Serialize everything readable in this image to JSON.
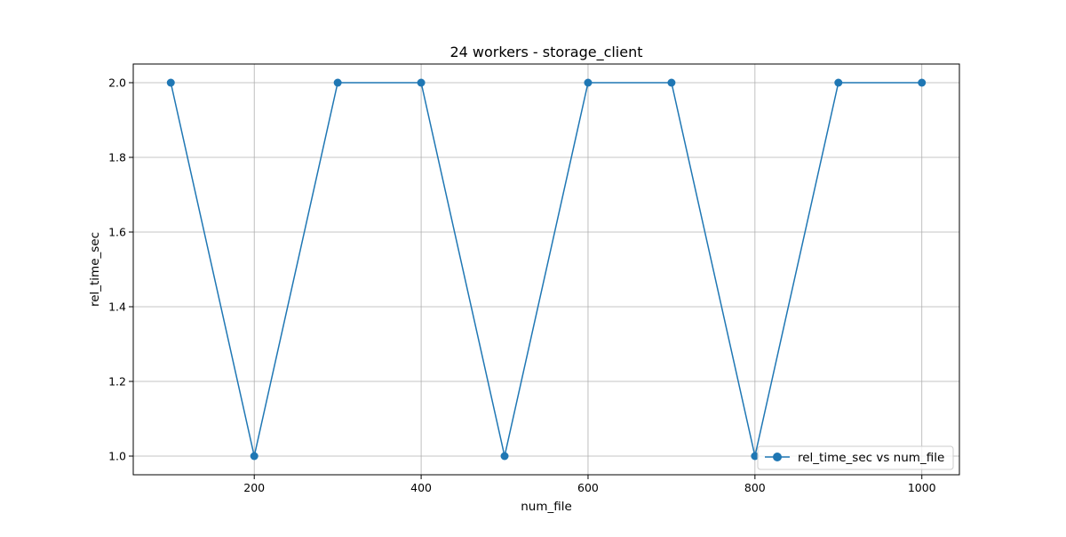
{
  "chart_data": {
    "type": "line",
    "title": "24 workers - storage_client",
    "xlabel": "num_file",
    "ylabel": "rel_time_sec",
    "xlim": [
      55,
      1045
    ],
    "ylim": [
      0.95,
      2.05
    ],
    "xticks": [
      200,
      400,
      600,
      800,
      1000
    ],
    "xtick_labels": [
      "200",
      "400",
      "600",
      "800",
      "1000"
    ],
    "yticks": [
      1.0,
      1.2,
      1.4,
      1.6,
      1.8,
      2.0
    ],
    "ytick_labels": [
      "1.0",
      "1.2",
      "1.4",
      "1.6",
      "1.8",
      "2.0"
    ],
    "grid": true,
    "legend_position": "lower-right",
    "series": [
      {
        "name": "rel_time_sec vs num_file",
        "color": "#1f77b4",
        "marker": "circle",
        "x": [
          100,
          200,
          300,
          400,
          500,
          600,
          700,
          800,
          900,
          1000
        ],
        "y": [
          2,
          1,
          2,
          2,
          1,
          2,
          2,
          1,
          2,
          2
        ]
      }
    ]
  }
}
